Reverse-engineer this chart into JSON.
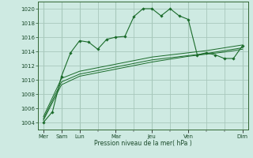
{
  "background_color": "#ceeae2",
  "grid_color": "#a8c8bc",
  "line_color": "#1a6b2a",
  "xlabel": "Pression niveau de la mer( hPa )",
  "ylim": [
    1003.0,
    1021.0
  ],
  "yticks": [
    1004,
    1006,
    1008,
    1010,
    1012,
    1014,
    1016,
    1018,
    1020
  ],
  "major_xtick_positions": [
    0,
    1,
    2,
    4,
    6,
    8,
    11
  ],
  "major_xtick_labels": [
    "Mer",
    "Sam",
    "Lun",
    "Mar",
    "Jeu",
    "Ven",
    "Dim"
  ],
  "minor_xtick_positions": [
    0,
    1,
    2,
    3,
    4,
    5,
    6,
    7,
    8,
    9,
    10,
    11
  ],
  "series1": {
    "x": [
      0,
      0.5,
      1,
      1.5,
      2,
      2.5,
      3,
      3.5,
      4,
      4.5,
      5,
      5.5,
      6,
      6.5,
      7,
      7.5,
      8,
      8.5,
      9,
      9.5,
      10,
      10.5,
      11
    ],
    "y": [
      1004.0,
      1005.5,
      1010.5,
      1013.8,
      1015.5,
      1015.3,
      1014.3,
      1015.7,
      1016.0,
      1016.1,
      1018.9,
      1020.0,
      1020.0,
      1019.0,
      1020.0,
      1019.0,
      1018.5,
      1013.5,
      1013.8,
      1013.5,
      1013.0,
      1013.0,
      1014.8
    ]
  },
  "series2": {
    "x": [
      0,
      1,
      2,
      3,
      4,
      5,
      6,
      7,
      8,
      9,
      10,
      11
    ],
    "y": [
      1004.3,
      1009.3,
      1010.5,
      1011.0,
      1011.5,
      1012.0,
      1012.5,
      1012.9,
      1013.3,
      1013.6,
      1013.9,
      1014.3
    ]
  },
  "series3": {
    "x": [
      0,
      1,
      2,
      3,
      4,
      5,
      6,
      7,
      8,
      9,
      10,
      11
    ],
    "y": [
      1004.5,
      1009.7,
      1010.8,
      1011.3,
      1011.8,
      1012.3,
      1012.8,
      1013.1,
      1013.4,
      1013.7,
      1014.1,
      1014.5
    ]
  },
  "series4": {
    "x": [
      0,
      1,
      2,
      3,
      4,
      5,
      6,
      7,
      8,
      9,
      10,
      11
    ],
    "y": [
      1004.8,
      1010.2,
      1011.2,
      1011.7,
      1012.2,
      1012.7,
      1013.2,
      1013.5,
      1013.8,
      1014.1,
      1014.5,
      1014.9
    ]
  }
}
